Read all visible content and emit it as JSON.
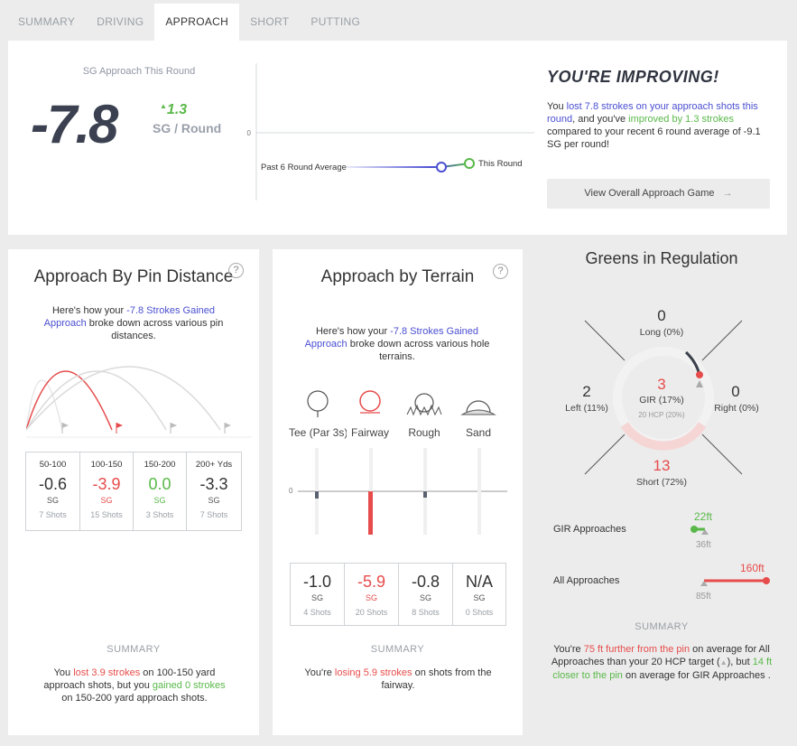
{
  "tabs": [
    "SUMMARY",
    "DRIVING",
    "APPROACH",
    "SHORT",
    "PUTTING"
  ],
  "top": {
    "sg_label": "SG Approach This Round",
    "sg_value": "-7.8",
    "sg_delta": "1.3",
    "sg_per": "SG / Round",
    "trend": {
      "zero_label": "0",
      "past_label": "Past 6 Round Average",
      "this_label": "This Round",
      "past_value": -9.1,
      "this_value": -7.8
    },
    "headline": "YOU'RE IMPROVING!",
    "text": {
      "p1": "You ",
      "p2": "lost 7.8 strokes on your approach shots this round",
      "p3": ", and you've ",
      "p4": "improved by 1.3 strokes",
      "p5": " compared to your recent 6 round average of -9.1 SG per round!"
    },
    "button": "View Overall Approach Game",
    "colors": {
      "green": "#59b849",
      "blue": "#4b4fd1",
      "red": "#e74c4c"
    }
  },
  "pin": {
    "title": "Approach By Pin Distance",
    "help": "?",
    "intro": {
      "p1": "Here's how your ",
      "p2": "-7.8 Strokes Gained Approach",
      "p3": " broke down across various pin distances."
    },
    "stats": [
      {
        "head": "50-100",
        "value": "-0.6",
        "sg": "SG",
        "shots": "7 Shots",
        "color": ""
      },
      {
        "head": "100-150",
        "value": "-3.9",
        "sg": "SG",
        "shots": "15 Shots",
        "color": "red"
      },
      {
        "head": "150-200",
        "value": "0.0",
        "sg": "SG",
        "shots": "3 Shots",
        "color": "green"
      },
      {
        "head": "200+ Yds",
        "value": "-3.3",
        "sg": "SG",
        "shots": "7 Shots",
        "color": ""
      }
    ],
    "summary_label": "SUMMARY",
    "summary": {
      "p1": "You ",
      "p2": "lost 3.9 strokes",
      "p3": " on 100-150 yard approach shots, but you ",
      "p4": "gained 0 strokes",
      "p5": " on 150-200 yard approach shots."
    }
  },
  "terrain": {
    "title": "Approach by Terrain",
    "help": "?",
    "intro": {
      "p1": "Here's how your ",
      "p2": "-7.8 Strokes Gained Approach",
      "p3": " broke down across various hole terrains."
    },
    "icons": [
      "Tee (Par 3s)",
      "Fairway",
      "Rough",
      "Sand"
    ],
    "zero_label": "0",
    "stats": [
      {
        "value": "-1.0",
        "sg": "SG",
        "shots": "4 Shots",
        "color": ""
      },
      {
        "value": "-5.9",
        "sg": "SG",
        "shots": "20 Shots",
        "color": "red"
      },
      {
        "value": "-0.8",
        "sg": "SG",
        "shots": "8 Shots",
        "color": ""
      },
      {
        "value": "N/A",
        "sg": "SG",
        "shots": "0 Shots",
        "color": ""
      }
    ],
    "summary_label": "SUMMARY",
    "summary": {
      "p1": "You're ",
      "p2": "losing 5.9 strokes",
      "p3": " on shots from the fairway."
    }
  },
  "gir": {
    "title": "Greens in Regulation",
    "long": {
      "num": "0",
      "label": "Long (0%)"
    },
    "left": {
      "num": "2",
      "label": "Left (11%)"
    },
    "right": {
      "num": "0",
      "label": "Right (0%)"
    },
    "short": {
      "num": "13",
      "label": "Short (72%)"
    },
    "center": {
      "num": "3",
      "label": "GIR (17%)",
      "target": "20 HCP (20%)"
    },
    "gir_approaches": {
      "label": "GIR Approaches",
      "value": "22ft",
      "target": "36ft"
    },
    "all_approaches": {
      "label": "All Approaches",
      "value": "160ft",
      "target": "85ft"
    },
    "summary_label": "SUMMARY",
    "summary": {
      "p1": "You're ",
      "p2": "75 ft further from the pin",
      "p3": " on average for All Approaches than your 20 HCP target (",
      "p4": "▲",
      "p5": "), but ",
      "p6": "14 ft closer to the pin",
      "p7": " on average for GIR Approaches ."
    }
  }
}
